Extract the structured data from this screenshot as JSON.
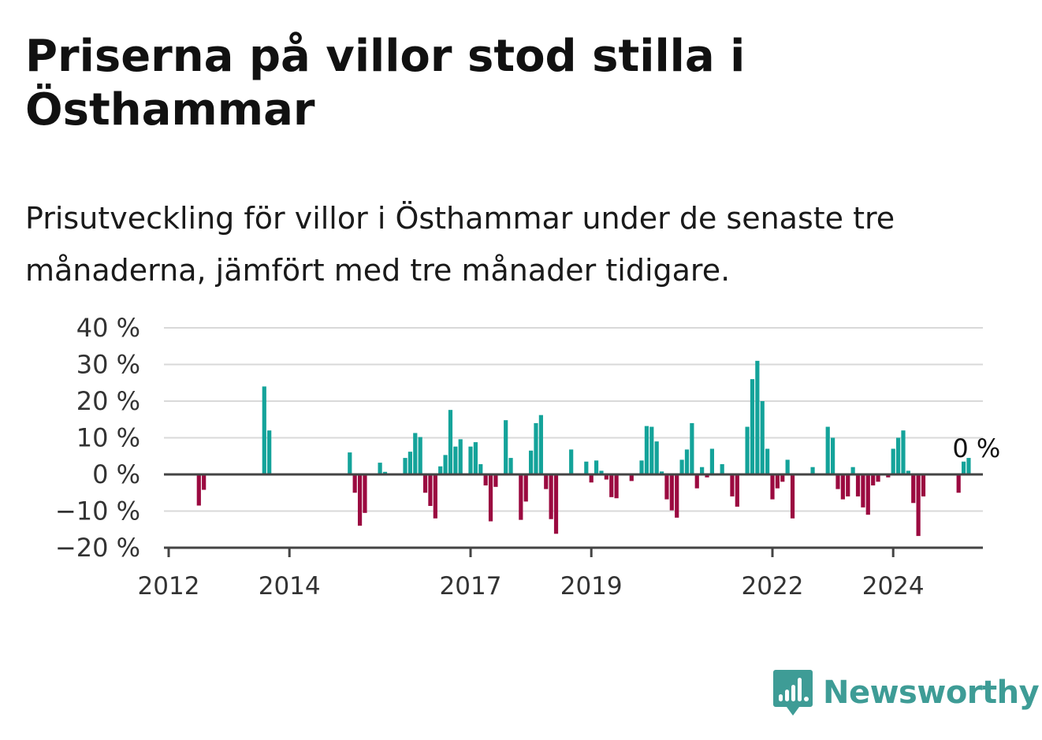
{
  "title": "Priserna på villor stod stilla i Östhammar",
  "subtitle": "Prisutveckling för villor i Östhammar under de senaste tre månaderna, jämfört med tre månader tidigare.",
  "brand": {
    "name": "Newsworthy",
    "color": "#3e9c96",
    "icon": "newsworthy-chart-bubble-icon"
  },
  "colors": {
    "positive": "#14a39a",
    "negative": "#9b0a40",
    "grid": "#d9d9d9",
    "axis": "#444444"
  },
  "chart_data": {
    "type": "bar",
    "title": "",
    "xlabel": "",
    "ylabel": "",
    "ylim": [
      -20,
      40
    ],
    "y_ticks": [
      {
        "value": 40,
        "label": "40 %"
      },
      {
        "value": 30,
        "label": "30 %"
      },
      {
        "value": 20,
        "label": "20 %"
      },
      {
        "value": 10,
        "label": "10 %"
      },
      {
        "value": 0,
        "label": "0 %"
      },
      {
        "value": -10,
        "label": "−10 %"
      },
      {
        "value": -20,
        "label": "−20 %"
      }
    ],
    "x_ticks": [
      {
        "year": 2012,
        "label": "2012"
      },
      {
        "year": 2014,
        "label": "2014"
      },
      {
        "year": 2017,
        "label": "2017"
      },
      {
        "year": 2019,
        "label": "2019"
      },
      {
        "year": 2022,
        "label": "2022"
      },
      {
        "year": 2024,
        "label": "2024"
      }
    ],
    "grid": true,
    "last_value_label": "0 %",
    "series": [
      {
        "values": [
          {
            "date": "2012-07",
            "value": -8.5
          },
          {
            "date": "2012-08",
            "value": -4.2
          },
          {
            "date": "2013-08",
            "value": 24
          },
          {
            "date": "2013-09",
            "value": 12
          },
          {
            "date": "2015-01",
            "value": 6
          },
          {
            "date": "2015-02",
            "value": -5
          },
          {
            "date": "2015-03",
            "value": -14
          },
          {
            "date": "2015-04",
            "value": -10.5
          },
          {
            "date": "2015-07",
            "value": 3.2
          },
          {
            "date": "2015-08",
            "value": 0.7
          },
          {
            "date": "2015-12",
            "value": 4.5
          },
          {
            "date": "2016-01",
            "value": 6.2
          },
          {
            "date": "2016-02",
            "value": 11.3
          },
          {
            "date": "2016-03",
            "value": 10.2
          },
          {
            "date": "2016-04",
            "value": -5
          },
          {
            "date": "2016-05",
            "value": -8.6
          },
          {
            "date": "2016-06",
            "value": -12
          },
          {
            "date": "2016-07",
            "value": 2.2
          },
          {
            "date": "2016-08",
            "value": 5.3
          },
          {
            "date": "2016-09",
            "value": 17.6
          },
          {
            "date": "2016-10",
            "value": 7.6
          },
          {
            "date": "2016-11",
            "value": 9.6
          },
          {
            "date": "2017-01",
            "value": 7.6
          },
          {
            "date": "2017-02",
            "value": 8.8
          },
          {
            "date": "2017-03",
            "value": 2.8
          },
          {
            "date": "2017-04",
            "value": -3
          },
          {
            "date": "2017-05",
            "value": -12.8
          },
          {
            "date": "2017-06",
            "value": -3.4
          },
          {
            "date": "2017-08",
            "value": 14.8
          },
          {
            "date": "2017-09",
            "value": 4.5
          },
          {
            "date": "2017-11",
            "value": -12.4
          },
          {
            "date": "2017-12",
            "value": -7.4
          },
          {
            "date": "2018-01",
            "value": 6.5
          },
          {
            "date": "2018-02",
            "value": 14
          },
          {
            "date": "2018-03",
            "value": 16.2
          },
          {
            "date": "2018-04",
            "value": -4
          },
          {
            "date": "2018-05",
            "value": -12.2
          },
          {
            "date": "2018-06",
            "value": -16.2
          },
          {
            "date": "2018-09",
            "value": 6.8
          },
          {
            "date": "2018-12",
            "value": 3.5
          },
          {
            "date": "2019-01",
            "value": -2.2
          },
          {
            "date": "2019-02",
            "value": 3.8
          },
          {
            "date": "2019-03",
            "value": 1
          },
          {
            "date": "2019-04",
            "value": -1.4
          },
          {
            "date": "2019-05",
            "value": -6.2
          },
          {
            "date": "2019-06",
            "value": -6.5
          },
          {
            "date": "2019-09",
            "value": -1.8
          },
          {
            "date": "2019-11",
            "value": 3.8
          },
          {
            "date": "2019-12",
            "value": 13.2
          },
          {
            "date": "2020-01",
            "value": 13
          },
          {
            "date": "2020-02",
            "value": 9
          },
          {
            "date": "2020-03",
            "value": 0.8
          },
          {
            "date": "2020-04",
            "value": -6.8
          },
          {
            "date": "2020-05",
            "value": -9.8
          },
          {
            "date": "2020-06",
            "value": -11.8
          },
          {
            "date": "2020-07",
            "value": 4
          },
          {
            "date": "2020-08",
            "value": 6.8
          },
          {
            "date": "2020-09",
            "value": 14
          },
          {
            "date": "2020-10",
            "value": -3.8
          },
          {
            "date": "2020-11",
            "value": 2
          },
          {
            "date": "2020-12",
            "value": -0.8
          },
          {
            "date": "2021-01",
            "value": 7
          },
          {
            "date": "2021-03",
            "value": 2.8
          },
          {
            "date": "2021-05",
            "value": -6
          },
          {
            "date": "2021-06",
            "value": -8.8
          },
          {
            "date": "2021-08",
            "value": 13
          },
          {
            "date": "2021-09",
            "value": 26
          },
          {
            "date": "2021-10",
            "value": 31
          },
          {
            "date": "2021-11",
            "value": 20
          },
          {
            "date": "2021-12",
            "value": 7
          },
          {
            "date": "2022-01",
            "value": -6.8
          },
          {
            "date": "2022-02",
            "value": -3.8
          },
          {
            "date": "2022-03",
            "value": -2
          },
          {
            "date": "2022-04",
            "value": 4
          },
          {
            "date": "2022-05",
            "value": -12
          },
          {
            "date": "2022-09",
            "value": 2
          },
          {
            "date": "2022-12",
            "value": 13
          },
          {
            "date": "2023-01",
            "value": 10
          },
          {
            "date": "2023-02",
            "value": -4
          },
          {
            "date": "2023-03",
            "value": -6.8
          },
          {
            "date": "2023-04",
            "value": -6
          },
          {
            "date": "2023-05",
            "value": 2
          },
          {
            "date": "2023-06",
            "value": -6
          },
          {
            "date": "2023-07",
            "value": -9
          },
          {
            "date": "2023-08",
            "value": -11
          },
          {
            "date": "2023-09",
            "value": -3
          },
          {
            "date": "2023-10",
            "value": -2
          },
          {
            "date": "2023-12",
            "value": -0.8
          },
          {
            "date": "2024-01",
            "value": 7
          },
          {
            "date": "2024-02",
            "value": 10
          },
          {
            "date": "2024-03",
            "value": 12
          },
          {
            "date": "2024-04",
            "value": 1
          },
          {
            "date": "2024-05",
            "value": -7.8
          },
          {
            "date": "2024-06",
            "value": -16.8
          },
          {
            "date": "2024-07",
            "value": -6
          },
          {
            "date": "2025-02",
            "value": -5
          },
          {
            "date": "2025-03",
            "value": 3.5
          },
          {
            "date": "2025-04",
            "value": 4.5
          },
          {
            "date": "2025-05",
            "value": 0
          }
        ]
      }
    ]
  }
}
